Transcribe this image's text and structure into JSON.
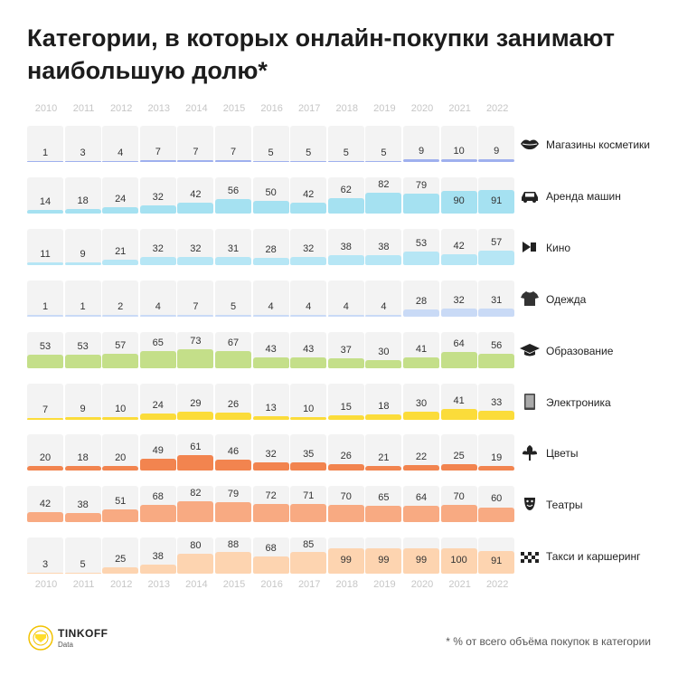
{
  "title": "Категории, в которых онлайн-покупки занимают наибольшую долю*",
  "footnote": "* % от всего объёма покупок в категории",
  "brand": {
    "name": "TINKOFF",
    "sub": "Data"
  },
  "chart_data": {
    "type": "table",
    "title": "Категории, в которых онлайн-покупки занимают наибольшую долю*",
    "unit": "% от всего объёма покупок в категории",
    "years": [
      "2010",
      "2011",
      "2012",
      "2013",
      "2014",
      "2015",
      "2016",
      "2017",
      "2018",
      "2019",
      "2020",
      "2021",
      "2022"
    ],
    "categories": [
      {
        "name": "Магазины косметики",
        "icon": "lips-icon",
        "color": "#9fb0ee",
        "values": [
          1,
          3,
          4,
          7,
          7,
          7,
          5,
          5,
          5,
          5,
          9,
          10,
          9
        ]
      },
      {
        "name": "Аренда машин",
        "icon": "car-icon",
        "color": "#a5e1f1",
        "values": [
          14,
          18,
          24,
          32,
          42,
          56,
          50,
          42,
          62,
          82,
          79,
          90,
          91
        ]
      },
      {
        "name": "Кино",
        "icon": "movie-camera-icon",
        "color": "#b6e6f5",
        "values": [
          11,
          9,
          21,
          32,
          32,
          31,
          28,
          32,
          38,
          38,
          53,
          42,
          57
        ]
      },
      {
        "name": "Одежда",
        "icon": "tshirt-icon",
        "color": "#c9daf6",
        "values": [
          1,
          1,
          2,
          4,
          7,
          5,
          4,
          4,
          4,
          4,
          28,
          32,
          31
        ]
      },
      {
        "name": "Образование",
        "icon": "graduation-cap-icon",
        "color": "#c4df89",
        "values": [
          53,
          53,
          57,
          65,
          73,
          67,
          43,
          43,
          37,
          30,
          41,
          64,
          56
        ]
      },
      {
        "name": "Электроника",
        "icon": "tablet-icon",
        "color": "#fbdc3a",
        "values": [
          7,
          9,
          10,
          24,
          29,
          26,
          13,
          10,
          15,
          18,
          30,
          41,
          33
        ]
      },
      {
        "name": "Цветы",
        "icon": "flower-icon",
        "color": "#f2844f",
        "values": [
          20,
          18,
          20,
          49,
          61,
          46,
          32,
          35,
          26,
          21,
          22,
          25,
          19
        ]
      },
      {
        "name": "Театры",
        "icon": "theater-masks-icon",
        "color": "#f8aa82",
        "values": [
          42,
          38,
          51,
          68,
          82,
          79,
          72,
          71,
          70,
          65,
          64,
          70,
          60
        ]
      },
      {
        "name": "Такси и каршеринг",
        "icon": "taxi-checker-icon",
        "color": "#fdd4b0",
        "values": [
          3,
          5,
          25,
          38,
          80,
          88,
          68,
          85,
          99,
          99,
          99,
          100,
          91
        ]
      }
    ]
  }
}
